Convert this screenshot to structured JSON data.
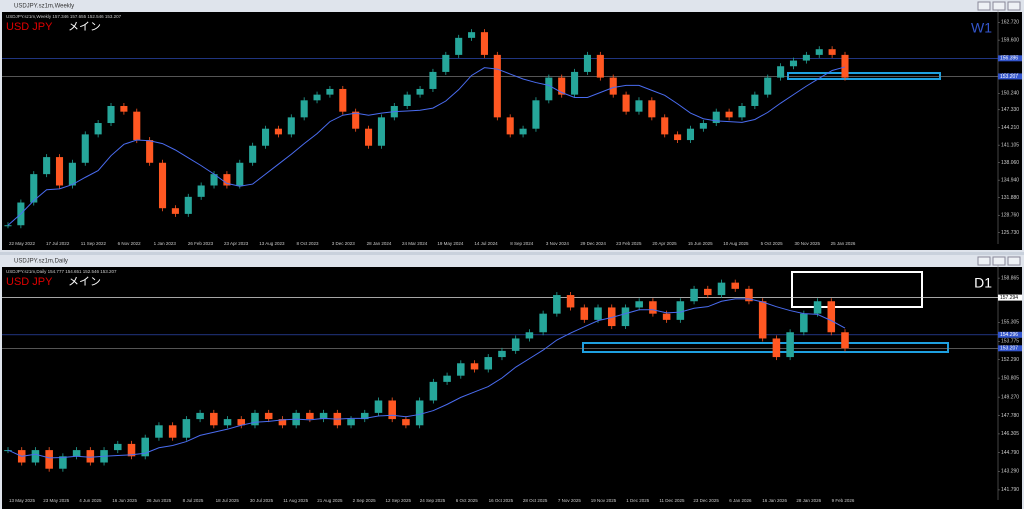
{
  "chart_data": [
    {
      "type": "candlestick",
      "window_title": "USDJPY.sz1m,Weekly",
      "header": "USDJPY.sz1m,Weekly 157.346 157.655 152.546 153.207",
      "symbol": "USD JPY",
      "mode": "メイン",
      "timeframe": "W1",
      "x_labels": [
        "22 May 2022",
        "17 Jul 2022",
        "11 Sep 2022",
        "6 Nov 2022",
        "1 Jan 2023",
        "26 Feb 2023",
        "23 Apr 2023",
        "13 Aug 2023",
        "8 Oct 2023",
        "3 Dec 2023",
        "28 Jan 2024",
        "24 Mar 2024",
        "19 May 2024",
        "14 Jul 2024",
        "8 Sep 2024",
        "3 Nov 2024",
        "29 Dec 2024",
        "23 Feb 2025",
        "20 Apr 2025",
        "15 Jun 2025",
        "10 Aug 2025",
        "5 Oct 2025",
        "30 Nov 2025",
        "25 Jan 2026"
      ],
      "values": [
        127,
        131,
        136,
        139,
        134,
        138,
        143,
        145,
        148,
        147,
        142,
        138,
        130,
        129,
        132,
        134,
        136,
        134,
        138,
        141,
        144,
        143,
        146,
        149,
        150,
        151,
        147,
        144,
        141,
        146,
        148,
        150,
        151,
        154,
        157,
        160,
        161,
        157,
        146,
        143,
        144,
        149,
        153,
        150,
        154,
        157,
        153,
        150,
        147,
        149,
        146,
        143,
        142,
        144,
        145,
        147,
        146,
        148,
        150,
        153,
        155,
        156,
        157,
        158,
        157,
        153
      ],
      "up_color": "#26a69a",
      "down_color": "#ff5722",
      "ylim": [
        124.4,
        164.2
      ],
      "yticks": [
        {
          "value": 162.72,
          "label": "162.720"
        },
        {
          "value": 159.6,
          "label": "159.600"
        },
        {
          "value": 156.48,
          "label": "156.480"
        },
        {
          "value": 153.36,
          "label": "153.360"
        },
        {
          "value": 150.24,
          "label": "150.240"
        },
        {
          "value": 147.33,
          "label": "147.330"
        },
        {
          "value": 144.21,
          "label": "144.210"
        },
        141.105,
        {
          "value": 138.06,
          "label": "138.060"
        },
        {
          "value": 134.94,
          "label": "134.940"
        },
        {
          "value": 131.88,
          "label": "131.880"
        },
        {
          "value": 128.76,
          "label": "128.760"
        },
        {
          "value": 125.73,
          "label": "125.730"
        }
      ],
      "price_lines": [
        156.396,
        153.207
      ]
    },
    {
      "type": "candlestick",
      "window_title": "USDJPY.sz1m,Daily",
      "header": "USDJPY.sz1m,Daily 154.777 154.651 152.546 153.207",
      "symbol": "USD JPY",
      "mode": "メイン",
      "timeframe": "D1",
      "x_labels": [
        "13 May 2025",
        "23 May 2025",
        "4 Jun 2025",
        "16 Jun 2025",
        "26 Jun 2025",
        "8 Jul 2025",
        "18 Jul 2025",
        "30 Jul 2025",
        "11 Aug 2025",
        "21 Aug 2025",
        "2 Sep 2025",
        "12 Sep 2025",
        "24 Sep 2025",
        "6 Oct 2025",
        "16 Oct 2025",
        "28 Oct 2025",
        "7 Nov 2025",
        "19 Nov 2025",
        "1 Dec 2025",
        "11 Dec 2025",
        "23 Dec 2025",
        "6 Jan 2026",
        "16 Jan 2026",
        "28 Jan 2026",
        "9 Feb 2026"
      ],
      "values": [
        145,
        144,
        145,
        143.5,
        144.5,
        145,
        144,
        145,
        145.5,
        144.5,
        146,
        147,
        146,
        147.5,
        148,
        147,
        147.5,
        147,
        148,
        147.5,
        147,
        148,
        147.5,
        148,
        147,
        147.5,
        148,
        149,
        147.5,
        147,
        149,
        150.5,
        151,
        152,
        151.5,
        152.5,
        153,
        154,
        154.5,
        156,
        157.5,
        156.5,
        155.5,
        156.5,
        155,
        156.5,
        157,
        156,
        155.5,
        157,
        158,
        157.5,
        158.5,
        158,
        157,
        154,
        152.5,
        154.5,
        156,
        157,
        154.5,
        153.2
      ],
      "up_color": "#26a69a",
      "down_color": "#ff5722",
      "ylim": [
        141.3,
        159.6
      ],
      "yticks": [
        158.865,
        {
          "value": 157.33,
          "label": "157.330"
        },
        155.305,
        153.775,
        {
          "value": 152.29,
          "label": "152.290"
        },
        150.805,
        {
          "value": 149.27,
          "label": "149.270"
        },
        {
          "value": 147.78,
          "label": "147.780"
        },
        146.305,
        {
          "value": 144.79,
          "label": "144.790"
        },
        {
          "value": 143.29,
          "label": "143.290"
        },
        {
          "value": 141.79,
          "label": "141.790"
        }
      ],
      "price_lines": [
        157.294,
        154.296,
        153.207
      ]
    }
  ]
}
